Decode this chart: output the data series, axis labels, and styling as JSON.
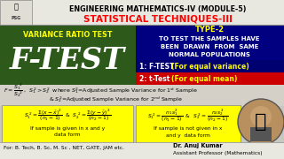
{
  "bg_color": "#d4d0c8",
  "top_bar_color": "#ffffff",
  "top_title": "ENGINEERING MATHEMATICS-IV (MODULE-5)",
  "top_title_color": "#000000",
  "subtitle": "STATISTICAL TECHNIQUES-III",
  "subtitle_color": "#ff0000",
  "left_panel_bg": "#2d5a1b",
  "left_panel_text1": "VARIANCE RATIO TEST",
  "left_panel_text1_color": "#ffff00",
  "left_panel_text2": "F-TEST",
  "left_panel_text2_color": "#ffffff",
  "right_top_bg": "#000080",
  "right_top_text": "TYPE-2",
  "right_top_text_color": "#ffff00",
  "right_mid_bg": "#000080",
  "right_mid_text": "TO TEST THE SAMPLES HAVE\nBEEN  DRAWN  FROM  SAME\nNORMAL POPULATIONS",
  "right_mid_text_color": "#ffffff",
  "right_bot1_bg": "#000070",
  "right_bot2_bg": "#cc0000",
  "box1_bg": "#ffff00",
  "box2_bg": "#ffff00",
  "footer_left": "For: B. Tech, B. Sc, M. Sc , NET, GATE, JAM etc.",
  "footer_right1": "Dr. Anuj Kumar",
  "footer_right2": "Assistant Professor (Mathematics)",
  "footer_color": "#000000",
  "overall_bg": "#c8c8c0",
  "top_region_bg": "#e8e8e0",
  "formula_area_bg": "#d4d0c8"
}
